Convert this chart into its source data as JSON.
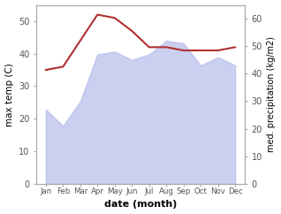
{
  "months": [
    "Jan",
    "Feb",
    "Mar",
    "Apr",
    "May",
    "Jun",
    "Jul",
    "Aug",
    "Sep",
    "Oct",
    "Nov",
    "Dec"
  ],
  "max_temp": [
    35,
    36,
    44,
    52,
    51,
    47,
    42,
    42,
    41,
    41,
    41,
    42
  ],
  "med_precip": [
    27,
    21,
    30,
    47,
    48,
    45,
    47,
    52,
    51,
    43,
    46,
    43
  ],
  "temp_color": "#b03030",
  "precip_fill_color": "#b0b8e8",
  "precip_fill_alpha": 0.65,
  "temp_ylim": [
    0,
    55
  ],
  "precip_ylim": [
    0,
    65
  ],
  "ylabel_left": "max temp (C)",
  "ylabel_right": "med. precipitation (kg/m2)",
  "xlabel": "date (month)",
  "left_yticks": [
    0,
    10,
    20,
    30,
    40,
    50
  ],
  "right_yticks": [
    0,
    10,
    20,
    30,
    40,
    50,
    60
  ],
  "bg_color": "#ffffff",
  "spine_color": "#aaaaaa",
  "tick_color": "#555555"
}
